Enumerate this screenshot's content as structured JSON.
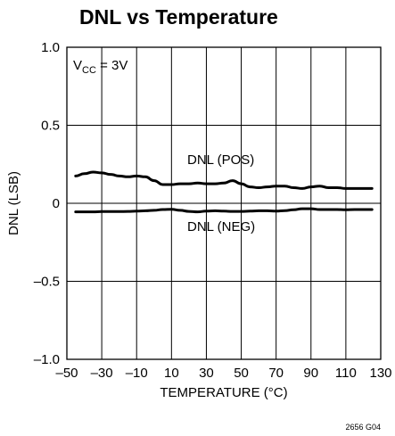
{
  "chart_data": {
    "type": "line",
    "title": "DNL vs Temperature",
    "xlabel": "TEMPERATURE (°C)",
    "ylabel": "DNL (LSB)",
    "xlim": [
      -50,
      130
    ],
    "ylim": [
      -1.0,
      1.0
    ],
    "grid": true,
    "x_ticks": [
      -50,
      -30,
      -10,
      10,
      30,
      50,
      70,
      90,
      110,
      130
    ],
    "x_tick_labels": [
      "–50",
      "–30",
      "–10",
      "10",
      "30",
      "50",
      "70",
      "90",
      "110",
      "130"
    ],
    "y_ticks": [
      -1.0,
      -0.5,
      0,
      0.5,
      1.0
    ],
    "y_tick_labels": [
      "–1.0",
      "–0.5",
      "0",
      "0.5",
      "1.0"
    ],
    "condition": {
      "main": "V",
      "sub": "CC",
      "rest": " = 3V"
    },
    "series": [
      {
        "name": "DNL (POS)",
        "x": [
          -45,
          -40,
          -35,
          -30,
          -25,
          -20,
          -15,
          -10,
          -5,
          0,
          5,
          10,
          15,
          20,
          25,
          30,
          35,
          40,
          45,
          50,
          55,
          60,
          65,
          70,
          75,
          80,
          85,
          90,
          95,
          100,
          105,
          110,
          115,
          120,
          125
        ],
        "y": [
          0.175,
          0.19,
          0.2,
          0.195,
          0.185,
          0.175,
          0.17,
          0.175,
          0.17,
          0.145,
          0.12,
          0.12,
          0.125,
          0.125,
          0.13,
          0.125,
          0.125,
          0.13,
          0.145,
          0.125,
          0.105,
          0.1,
          0.105,
          0.11,
          0.11,
          0.1,
          0.095,
          0.105,
          0.11,
          0.1,
          0.1,
          0.095,
          0.095,
          0.095,
          0.095
        ]
      },
      {
        "name": "DNL (NEG)",
        "x": [
          -45,
          -40,
          -35,
          -30,
          -25,
          -20,
          -15,
          -10,
          -5,
          0,
          5,
          10,
          15,
          20,
          25,
          30,
          35,
          40,
          45,
          50,
          55,
          60,
          65,
          70,
          75,
          80,
          85,
          90,
          95,
          100,
          105,
          110,
          115,
          120,
          125
        ],
        "y": [
          -0.055,
          -0.055,
          -0.055,
          -0.053,
          -0.053,
          -0.053,
          -0.052,
          -0.05,
          -0.048,
          -0.045,
          -0.04,
          -0.038,
          -0.045,
          -0.052,
          -0.055,
          -0.05,
          -0.048,
          -0.05,
          -0.052,
          -0.052,
          -0.05,
          -0.048,
          -0.048,
          -0.05,
          -0.047,
          -0.042,
          -0.035,
          -0.035,
          -0.04,
          -0.04,
          -0.04,
          -0.042,
          -0.04,
          -0.04,
          -0.04
        ]
      }
    ],
    "annotations": [
      "DNL (POS)",
      "DNL (NEG)"
    ],
    "figure_code": "2656 G04"
  }
}
